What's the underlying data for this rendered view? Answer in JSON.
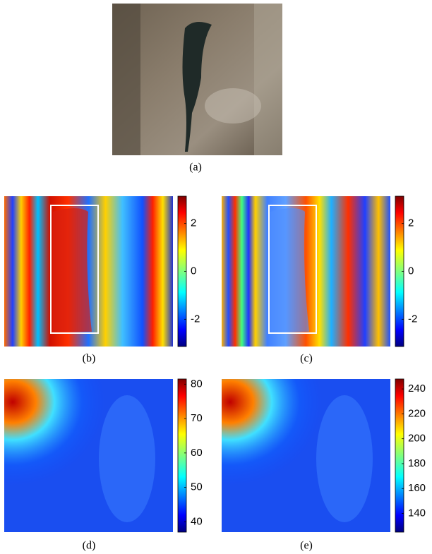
{
  "panels": [
    {
      "caption": "(a)"
    },
    {
      "caption": "(b)",
      "colorbar": {
        "lim": [
          -3.14,
          3.14
        ],
        "ticks": [
          -2,
          0,
          2
        ]
      }
    },
    {
      "caption": "(c)",
      "colorbar": {
        "lim": [
          -3.14,
          3.14
        ],
        "ticks": [
          -2,
          0,
          2
        ]
      }
    },
    {
      "caption": "(d)",
      "colorbar": {
        "lim": [
          37,
          81.5
        ],
        "ticks": [
          40,
          50,
          60,
          70,
          80
        ]
      }
    },
    {
      "caption": "(e)",
      "colorbar": {
        "lim": [
          125,
          248
        ],
        "ticks": [
          140,
          160,
          180,
          200,
          220,
          240
        ]
      }
    }
  ]
}
